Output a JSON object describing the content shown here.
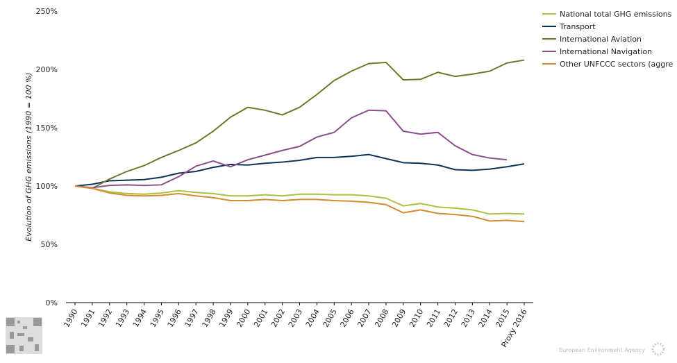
{
  "chart_data": {
    "type": "line",
    "y_label": "Evolution of GHG emissions (1990 = 100 %)",
    "source": "European Environment Agency",
    "categories": [
      "1990",
      "1991",
      "1992",
      "1993",
      "1994",
      "1995",
      "1996",
      "1997",
      "1998",
      "1999",
      "2000",
      "2001",
      "2002",
      "2003",
      "2004",
      "2005",
      "2006",
      "2007",
      "2008",
      "2009",
      "2010",
      "2011",
      "2012",
      "2013",
      "2014",
      "2015",
      "Proxy 2016"
    ],
    "ylim": [
      0,
      250
    ],
    "yticks": [
      {
        "value": 0,
        "label": "0%"
      },
      {
        "value": 50,
        "label": "50%"
      },
      {
        "value": 100,
        "label": "100%"
      },
      {
        "value": 150,
        "label": "150%"
      },
      {
        "value": 200,
        "label": "200%"
      },
      {
        "value": 250,
        "label": "250%"
      }
    ],
    "grid": false,
    "legend": "top-right",
    "series": [
      {
        "name": "National total GHG emissions",
        "color": "#a9c23f",
        "values": [
          100,
          98,
          95,
          93.5,
          93,
          94,
          96,
          94.5,
          93.5,
          91.5,
          91.5,
          92.5,
          91.5,
          93,
          93,
          92.5,
          92.5,
          91.5,
          89.5,
          83,
          85,
          82,
          81,
          79.5,
          76,
          76.5,
          76
        ]
      },
      {
        "name": "Transport",
        "color": "#0d3458",
        "values": [
          100,
          101.5,
          104.5,
          105,
          105.5,
          107.5,
          111,
          112.5,
          116,
          118.5,
          118,
          119.5,
          120.5,
          122,
          124.5,
          124.5,
          125.5,
          127,
          123.5,
          120,
          119.5,
          118,
          114,
          113.5,
          114.5,
          116.5,
          119
        ]
      },
      {
        "name": "International Aviation",
        "color": "#6b7a2a",
        "values": [
          100,
          98,
          106,
          112.5,
          117.5,
          124.5,
          130.5,
          137,
          147,
          159,
          167.5,
          165,
          161,
          167.5,
          178.5,
          190.5,
          198.5,
          205,
          206,
          191,
          191.5,
          197.5,
          194,
          196,
          198.5,
          205.5,
          208
        ]
      },
      {
        "name": "International Navigation",
        "color": "#8a4e8c",
        "values": [
          100,
          98.5,
          100.5,
          101,
          100.5,
          101,
          108,
          117,
          121.5,
          116.5,
          122.5,
          126.5,
          130.5,
          134,
          142,
          146,
          158.5,
          165,
          164.5,
          147,
          144.5,
          146,
          134.5,
          127,
          124,
          122.5,
          null
        ]
      },
      {
        "name": "Other UNFCCC sectors (aggre",
        "color": "#d68a2e",
        "values": [
          100,
          98,
          94,
          92,
          91.5,
          92,
          93.5,
          91.5,
          90,
          87.5,
          87.5,
          88.5,
          87.5,
          88.5,
          88.5,
          87.5,
          87,
          86,
          84,
          77,
          79.5,
          76.5,
          75.5,
          74,
          70,
          70.5,
          69.5
        ]
      }
    ]
  }
}
